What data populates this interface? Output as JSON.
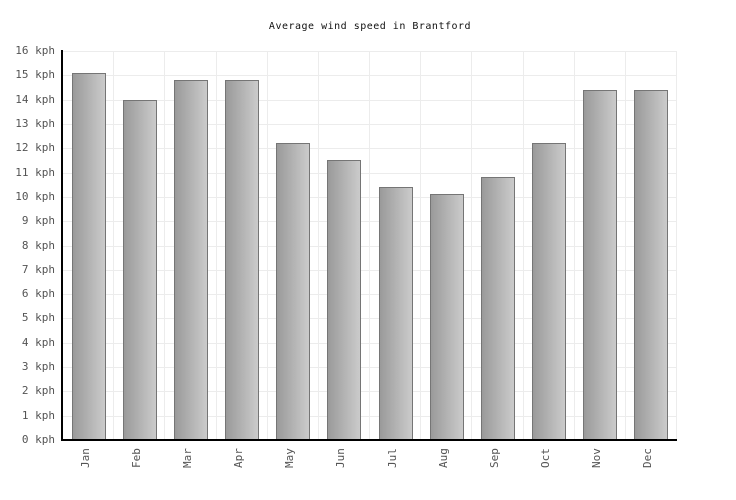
{
  "chart_data": {
    "type": "bar",
    "title": "Average wind speed in Brantford",
    "categories": [
      "Jan",
      "Feb",
      "Mar",
      "Apr",
      "May",
      "Jun",
      "Jul",
      "Aug",
      "Sep",
      "Oct",
      "Nov",
      "Dec"
    ],
    "values": [
      15.1,
      14.0,
      14.8,
      14.8,
      12.2,
      11.5,
      10.4,
      10.1,
      10.8,
      12.2,
      14.4,
      14.4
    ],
    "unit": "kph",
    "ytick_suffix": " kph",
    "ylim": [
      0,
      16
    ],
    "ytick_step": 1,
    "ytick_labels": [
      "0 kph",
      "1 kph",
      "2 kph",
      "3 kph",
      "4 kph",
      "5 kph",
      "6 kph",
      "7 kph",
      "8 kph",
      "9 kph",
      "10 kph",
      "11 kph",
      "12 kph",
      "13 kph",
      "14 kph",
      "15 kph",
      "16 kph"
    ],
    "grid": true,
    "legend": "none",
    "colors": {
      "bar_gradient_left": "#9a9a9a",
      "bar_gradient_right": "#cbcbcb",
      "bar_border": "#757575",
      "gridline": "#ececec",
      "axis": "#000000",
      "tick_label": "#545454",
      "title": "#111111",
      "background": "#ffffff"
    }
  }
}
